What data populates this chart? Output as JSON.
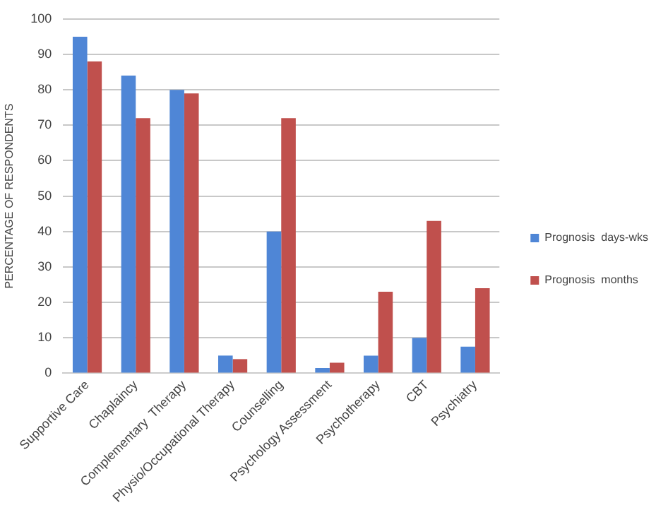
{
  "chart_data": {
    "type": "bar",
    "ylabel": "PERCENTAGE OF RESPONDENTS",
    "categories": [
      "Supportive Care",
      "Chaplaincy",
      "Complementary  Therapy",
      "Physio/Occupational Therapy",
      "Counselling",
      "Psychology Assessment",
      "Psychotherapy",
      "CBT",
      "Psychiatry"
    ],
    "series": [
      {
        "name": "Prognosis  days-wks",
        "color": "#4f86d6",
        "values": [
          95,
          84,
          80,
          5,
          40,
          1.5,
          5,
          10,
          7.5
        ]
      },
      {
        "name": "Prognosis  months",
        "color": "#c0504d",
        "values": [
          88,
          72,
          79,
          4,
          72,
          3,
          23,
          43,
          24
        ]
      }
    ],
    "ylim": [
      0,
      100
    ],
    "yticks": [
      0,
      10,
      20,
      30,
      40,
      50,
      60,
      70,
      80,
      90,
      100
    ],
    "grid": "y",
    "legend": "right"
  }
}
